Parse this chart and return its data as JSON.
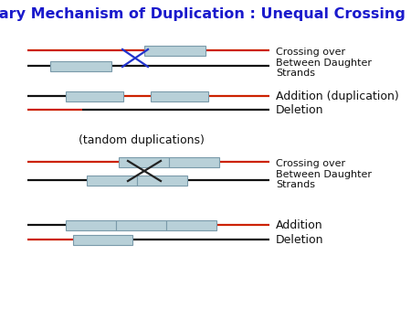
{
  "title": "Primary Mechanism of Duplication : Unequal Crossing Over",
  "title_color": "#1a1acc",
  "title_fontsize": 11.5,
  "bg_color": "#ffffff",
  "box_facecolor": "#b8d0d8",
  "box_edgecolor": "#7a9aaa",
  "red_color": "#cc2200",
  "black_color": "#111111",
  "blue_x_color": "#2233cc",
  "black_x_color": "#222222",
  "label_fontsize": 8,
  "label_color": "#111111",
  "addition_dup_label": "Addition (duplication)",
  "deletion_label": "Deletion",
  "tandom_label": "(tandom duplications)",
  "crossing_label": "Crossing over\nBetween Daughter\nStrands",
  "addition_label": "Addition"
}
